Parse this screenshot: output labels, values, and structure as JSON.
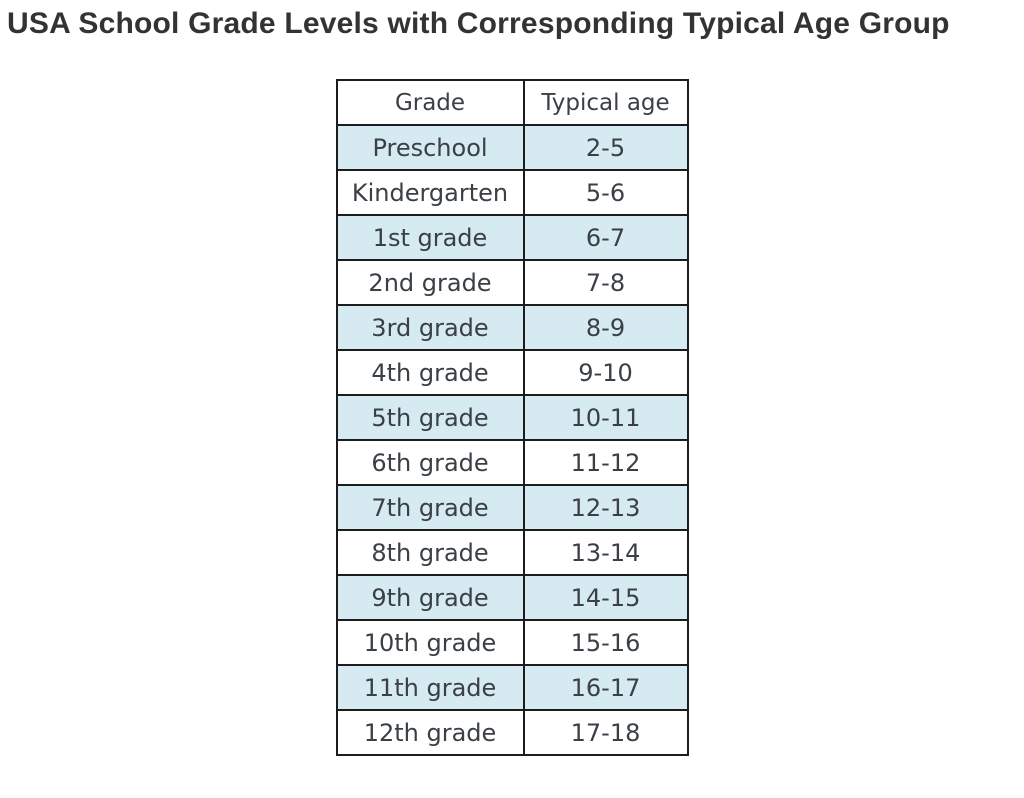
{
  "title": "USA School Grade Levels with Corresponding Typical Age Group",
  "colors": {
    "stripe": "#d6eaf1",
    "border": "#1c1c1c",
    "cell-text": "#3a4045",
    "title-text": "#333333",
    "page-bg": "#ffffff"
  },
  "chart_data": {
    "type": "table",
    "title": "USA School Grade Levels with Corresponding Typical Age Group",
    "columns": [
      "Grade",
      "Typical age"
    ],
    "rows": [
      {
        "grade": "Preschool",
        "age": "2-5"
      },
      {
        "grade": "Kindergarten",
        "age": "5-6"
      },
      {
        "grade": "1st grade",
        "age": "6-7"
      },
      {
        "grade": "2nd grade",
        "age": "7-8"
      },
      {
        "grade": "3rd grade",
        "age": "8-9"
      },
      {
        "grade": "4th grade",
        "age": "9-10"
      },
      {
        "grade": "5th grade",
        "age": "10-11"
      },
      {
        "grade": "6th grade",
        "age": "11-12"
      },
      {
        "grade": "7th grade",
        "age": "12-13"
      },
      {
        "grade": "8th grade",
        "age": "13-14"
      },
      {
        "grade": "9th grade",
        "age": "14-15"
      },
      {
        "grade": "10th grade",
        "age": "15-16"
      },
      {
        "grade": "11th grade",
        "age": "16-17"
      },
      {
        "grade": "12th grade",
        "age": "17-18"
      }
    ],
    "layout": {
      "stripe_rows": "odd data rows (1st, 3rd, ...) starting with first data row",
      "header_background": "#ffffff",
      "grid": true
    }
  }
}
